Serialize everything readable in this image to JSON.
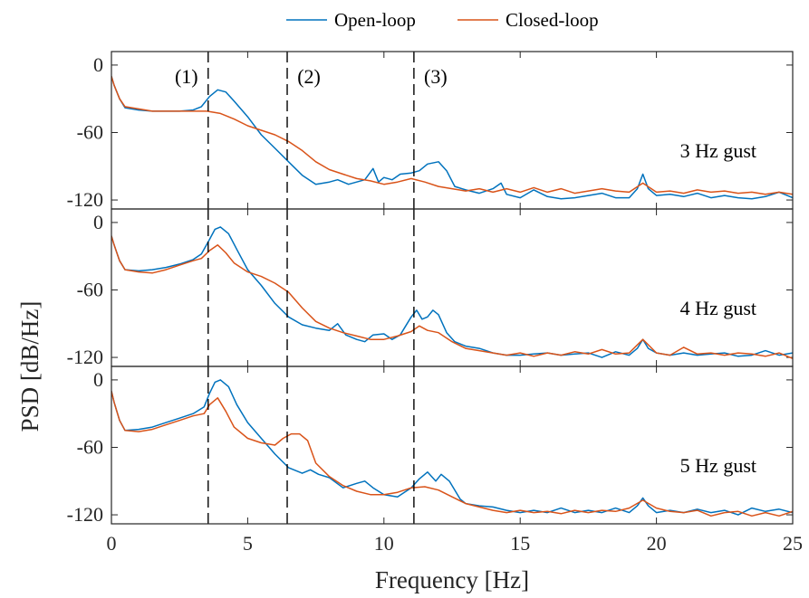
{
  "chart_data": {
    "type": "line",
    "xlabel": "Frequency [Hz]",
    "ylabel": "PSD [dB/Hz]",
    "xlim": [
      0,
      25
    ],
    "ylim": [
      -128,
      12
    ],
    "xticks": [
      0,
      5,
      10,
      15,
      20,
      25
    ],
    "yticks": [
      0,
      -60,
      -120
    ],
    "legend": {
      "placement": "top",
      "entries": [
        "Open-loop",
        "Closed-loop"
      ]
    },
    "colors": {
      "open": "#0072bd",
      "closed": "#d95319"
    },
    "markers": [
      {
        "x": 3.55,
        "label": "(1)"
      },
      {
        "x": 6.45,
        "label": "(2)"
      },
      {
        "x": 11.1,
        "label": "(3)"
      }
    ],
    "panels": [
      {
        "label": "3 Hz gust",
        "series": [
          {
            "name": "Open-loop",
            "x": [
              0,
              0.1,
              0.3,
              0.5,
              1,
              1.5,
              2,
              2.5,
              3,
              3.3,
              3.6,
              3.9,
              4.2,
              4.5,
              5,
              5.5,
              6,
              6.5,
              7,
              7.5,
              8,
              8.3,
              8.7,
              9,
              9.3,
              9.6,
              9.8,
              10,
              10.3,
              10.6,
              11,
              11.3,
              11.6,
              12,
              12.3,
              12.6,
              13,
              13.5,
              14,
              14.3,
              14.5,
              15,
              15.5,
              16,
              16.5,
              17,
              17.5,
              18,
              18.5,
              19,
              19.3,
              19.5,
              19.7,
              20,
              20.5,
              21,
              21.5,
              22,
              22.5,
              23,
              23.5,
              24,
              24.5,
              25
            ],
            "y": [
              -10,
              -18,
              -30,
              -38,
              -40,
              -41,
              -41,
              -41,
              -40,
              -37,
              -28,
              -22,
              -24,
              -32,
              -46,
              -62,
              -74,
              -86,
              -98,
              -106,
              -104,
              -102,
              -106,
              -104,
              -102,
              -92,
              -104,
              -100,
              -102,
              -97,
              -96,
              -94,
              -88,
              -86,
              -94,
              -108,
              -111,
              -114,
              -110,
              -105,
              -115,
              -118,
              -111,
              -117,
              -119,
              -118,
              -116,
              -114,
              -118,
              -118,
              -110,
              -97,
              -110,
              -116,
              -115,
              -117,
              -114,
              -118,
              -116,
              -118,
              -119,
              -117,
              -113,
              -118
            ]
          },
          {
            "name": "Closed-loop",
            "x": [
              0,
              0.1,
              0.3,
              0.5,
              1,
              1.5,
              2,
              2.5,
              3,
              3.5,
              4,
              4.5,
              5,
              5.5,
              6,
              6.5,
              7,
              7.5,
              8,
              8.5,
              9,
              9.5,
              10,
              10.5,
              11,
              11.5,
              12,
              12.5,
              13,
              13.5,
              14,
              14.5,
              15,
              15.5,
              16,
              16.5,
              17,
              17.5,
              18,
              18.5,
              19,
              19.5,
              20,
              20.5,
              21,
              21.5,
              22,
              22.5,
              23,
              23.5,
              24,
              24.5,
              25
            ],
            "y": [
              -10,
              -18,
              -30,
              -37,
              -39,
              -41,
              -41,
              -41,
              -41,
              -41,
              -43,
              -48,
              -54,
              -58,
              -62,
              -68,
              -76,
              -86,
              -93,
              -97,
              -101,
              -103,
              -106,
              -104,
              -101,
              -104,
              -108,
              -110,
              -112,
              -110,
              -113,
              -110,
              -113,
              -109,
              -113,
              -110,
              -114,
              -112,
              -110,
              -112,
              -113,
              -105,
              -113,
              -112,
              -114,
              -111,
              -113,
              -112,
              -114,
              -113,
              -115,
              -113,
              -115
            ]
          }
        ]
      },
      {
        "label": "4 Hz gust",
        "series": [
          {
            "name": "Open-loop",
            "x": [
              0,
              0.1,
              0.3,
              0.5,
              1,
              1.5,
              2,
              2.5,
              3,
              3.3,
              3.6,
              3.8,
              4,
              4.3,
              4.6,
              5,
              5.5,
              6,
              6.5,
              7,
              7.5,
              8,
              8.3,
              8.6,
              9,
              9.3,
              9.6,
              10,
              10.3,
              10.6,
              11,
              11.2,
              11.4,
              11.6,
              11.8,
              12,
              12.3,
              12.6,
              13,
              13.5,
              14,
              14.5,
              15,
              15.5,
              16,
              16.5,
              17,
              17.5,
              18,
              18.5,
              19,
              19.3,
              19.5,
              19.7,
              20,
              20.5,
              21,
              21.5,
              22,
              22.5,
              23,
              23.5,
              24,
              24.5,
              25
            ],
            "y": [
              -12,
              -20,
              -34,
              -42,
              -43,
              -42,
              -40,
              -37,
              -33,
              -28,
              -15,
              -6,
              -4,
              -10,
              -24,
              -42,
              -56,
              -72,
              -84,
              -91,
              -94,
              -96,
              -90,
              -100,
              -104,
              -106,
              -100,
              -99,
              -104,
              -100,
              -84,
              -78,
              -86,
              -84,
              -78,
              -82,
              -98,
              -106,
              -110,
              -112,
              -116,
              -118,
              -118,
              -117,
              -116,
              -118,
              -117,
              -116,
              -120,
              -115,
              -118,
              -112,
              -104,
              -112,
              -116,
              -118,
              -116,
              -118,
              -117,
              -116,
              -119,
              -118,
              -114,
              -118,
              -116
            ]
          },
          {
            "name": "Closed-loop",
            "x": [
              0,
              0.1,
              0.3,
              0.5,
              1,
              1.5,
              2,
              2.5,
              3,
              3.3,
              3.6,
              3.9,
              4.2,
              4.5,
              5,
              5.5,
              6,
              6.5,
              7,
              7.5,
              8,
              8.5,
              9,
              9.5,
              10,
              10.5,
              11,
              11.3,
              11.6,
              12,
              12.5,
              13,
              13.5,
              14,
              14.5,
              15,
              15.5,
              16,
              16.5,
              17,
              17.5,
              18,
              18.5,
              19,
              19.5,
              20,
              20.5,
              21,
              21.5,
              22,
              22.5,
              23,
              23.5,
              24,
              24.5,
              25
            ],
            "y": [
              -12,
              -20,
              -34,
              -42,
              -44,
              -45,
              -42,
              -38,
              -34,
              -32,
              -25,
              -20,
              -27,
              -36,
              -44,
              -48,
              -54,
              -62,
              -76,
              -88,
              -94,
              -98,
              -101,
              -104,
              -104,
              -101,
              -97,
              -92,
              -96,
              -98,
              -106,
              -112,
              -114,
              -116,
              -118,
              -116,
              -119,
              -116,
              -118,
              -115,
              -117,
              -113,
              -117,
              -116,
              -104,
              -116,
              -118,
              -111,
              -117,
              -116,
              -118,
              -116,
              -117,
              -119,
              -116,
              -121
            ]
          }
        ]
      },
      {
        "label": "5 Hz gust",
        "series": [
          {
            "name": "Open-loop",
            "x": [
              0,
              0.1,
              0.3,
              0.5,
              1,
              1.5,
              2,
              2.5,
              3,
              3.4,
              3.6,
              3.8,
              4,
              4.3,
              4.6,
              5,
              5.5,
              6,
              6.5,
              7,
              7.3,
              7.6,
              8,
              8.5,
              9,
              9.3,
              9.6,
              10,
              10.5,
              11,
              11.3,
              11.6,
              11.9,
              12.1,
              12.4,
              12.8,
              13,
              13.5,
              14,
              14.5,
              15,
              15.5,
              16,
              16.5,
              17,
              17.5,
              18,
              18.5,
              19,
              19.3,
              19.5,
              19.7,
              20,
              20.5,
              21,
              21.5,
              22,
              22.5,
              23,
              23.5,
              24,
              24.5,
              25
            ],
            "y": [
              -10,
              -20,
              -36,
              -45,
              -44,
              -42,
              -38,
              -34,
              -30,
              -24,
              -12,
              -2,
              0,
              -6,
              -22,
              -38,
              -52,
              -66,
              -78,
              -83,
              -80,
              -84,
              -87,
              -96,
              -92,
              -90,
              -96,
              -102,
              -104,
              -96,
              -88,
              -82,
              -90,
              -84,
              -90,
              -106,
              -110,
              -112,
              -113,
              -116,
              -118,
              -116,
              -118,
              -114,
              -118,
              -116,
              -118,
              -114,
              -118,
              -112,
              -105,
              -112,
              -118,
              -116,
              -118,
              -115,
              -118,
              -116,
              -120,
              -114,
              -117,
              -115,
              -118
            ]
          },
          {
            "name": "Closed-loop",
            "x": [
              0,
              0.1,
              0.3,
              0.5,
              1,
              1.5,
              2,
              2.5,
              3,
              3.4,
              3.6,
              3.9,
              4.2,
              4.5,
              5,
              5.5,
              6,
              6.3,
              6.6,
              6.9,
              7.2,
              7.5,
              8,
              8.5,
              9,
              9.5,
              10,
              10.5,
              11,
              11.5,
              12,
              12.5,
              13,
              13.5,
              14,
              14.5,
              15,
              15.5,
              16,
              16.5,
              17,
              17.5,
              18,
              18.5,
              19,
              19.5,
              20,
              20.5,
              21,
              21.5,
              22,
              22.5,
              23,
              23.5,
              24,
              24.5,
              25
            ],
            "y": [
              -10,
              -20,
              -36,
              -45,
              -46,
              -44,
              -40,
              -36,
              -32,
              -30,
              -22,
              -16,
              -28,
              -42,
              -52,
              -56,
              -58,
              -52,
              -48,
              -48,
              -54,
              -74,
              -86,
              -94,
              -99,
              -102,
              -102,
              -100,
              -96,
              -95,
              -98,
              -104,
              -110,
              -113,
              -116,
              -118,
              -116,
              -118,
              -117,
              -119,
              -116,
              -118,
              -116,
              -117,
              -114,
              -107,
              -114,
              -117,
              -118,
              -116,
              -121,
              -118,
              -117,
              -121,
              -118,
              -121,
              -117
            ]
          }
        ]
      }
    ]
  }
}
